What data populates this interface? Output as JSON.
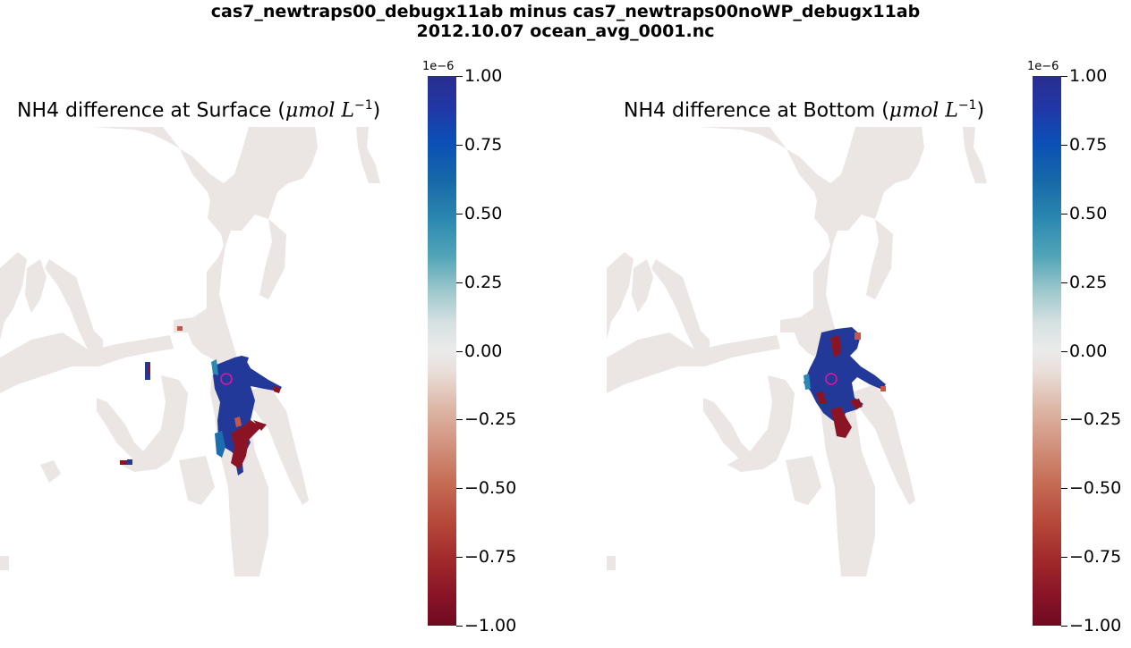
{
  "suptitle": {
    "line1": "cas7_newtraps00_debugx11ab minus cas7_newtraps00noWP_debugx11ab",
    "line2": "2012.10.07 ocean_avg_0001.nc"
  },
  "chart_data": [
    {
      "type": "heatmap",
      "title_prefix": "NH4 difference at Surface (",
      "title_unit_mu": "μmol",
      "title_unit_L": "L",
      "title_unit_exp": "−1",
      "title_suffix": ")",
      "colorbar": {
        "exponent_label": "1e−6",
        "vmin": -1.0,
        "vmax": 1.0,
        "ticks": [
          "1.00",
          "0.75",
          "0.50",
          "0.25",
          "0.00",
          "−0.25",
          "−0.50",
          "−0.75",
          "−1.00"
        ]
      },
      "marker": "circle"
    },
    {
      "type": "heatmap",
      "title_prefix": "NH4 difference at Bottom (",
      "title_unit_mu": "μmol",
      "title_unit_L": "L",
      "title_unit_exp": "−1",
      "title_suffix": ")",
      "colorbar": {
        "exponent_label": "1e−6",
        "vmin": -1.0,
        "vmax": 1.0,
        "ticks": [
          "1.00",
          "0.75",
          "0.50",
          "0.25",
          "0.00",
          "−0.25",
          "−0.50",
          "−0.75",
          "−1.00"
        ]
      },
      "marker": "circle"
    }
  ],
  "colors": {
    "water_zero": "#ebe5e4",
    "positive": "#23399a",
    "negative": "#8b1424",
    "marker": "#e0189e"
  }
}
